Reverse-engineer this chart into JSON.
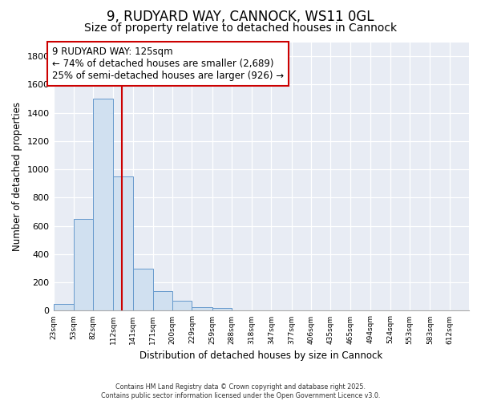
{
  "title": "9, RUDYARD WAY, CANNOCK, WS11 0GL",
  "subtitle": "Size of property relative to detached houses in Cannock",
  "xlabel": "Distribution of detached houses by size in Cannock",
  "ylabel": "Number of detached properties",
  "bin_edges": [
    23,
    53,
    82,
    112,
    141,
    171,
    200,
    229,
    259,
    288,
    318,
    347,
    377,
    406,
    435,
    465,
    494,
    524,
    553,
    583,
    612
  ],
  "bar_heights": [
    50,
    650,
    1500,
    950,
    300,
    140,
    70,
    25,
    20,
    5,
    5,
    3,
    3,
    2,
    1,
    1,
    1,
    1,
    1,
    1
  ],
  "bar_color": "#d0e0f0",
  "bar_edge_color": "#6699cc",
  "vline_x": 125,
  "vline_color": "#cc0000",
  "annotation_text": "9 RUDYARD WAY: 125sqm\n← 74% of detached houses are smaller (2,689)\n25% of semi-detached houses are larger (926) →",
  "annotation_box_color": "#ffffff",
  "annotation_box_edge": "#cc0000",
  "ylim": [
    0,
    1900
  ],
  "yticks": [
    0,
    200,
    400,
    600,
    800,
    1000,
    1200,
    1400,
    1600,
    1800
  ],
  "plot_bg_color": "#e8ecf4",
  "fig_bg_color": "#ffffff",
  "footer_line1": "Contains HM Land Registry data © Crown copyright and database right 2025.",
  "footer_line2": "Contains public sector information licensed under the Open Government Licence v3.0.",
  "title_fontsize": 12,
  "subtitle_fontsize": 10,
  "tick_labels": [
    "23sqm",
    "53sqm",
    "82sqm",
    "112sqm",
    "141sqm",
    "171sqm",
    "200sqm",
    "229sqm",
    "259sqm",
    "288sqm",
    "318sqm",
    "347sqm",
    "377sqm",
    "406sqm",
    "435sqm",
    "465sqm",
    "494sqm",
    "524sqm",
    "553sqm",
    "583sqm",
    "612sqm"
  ]
}
